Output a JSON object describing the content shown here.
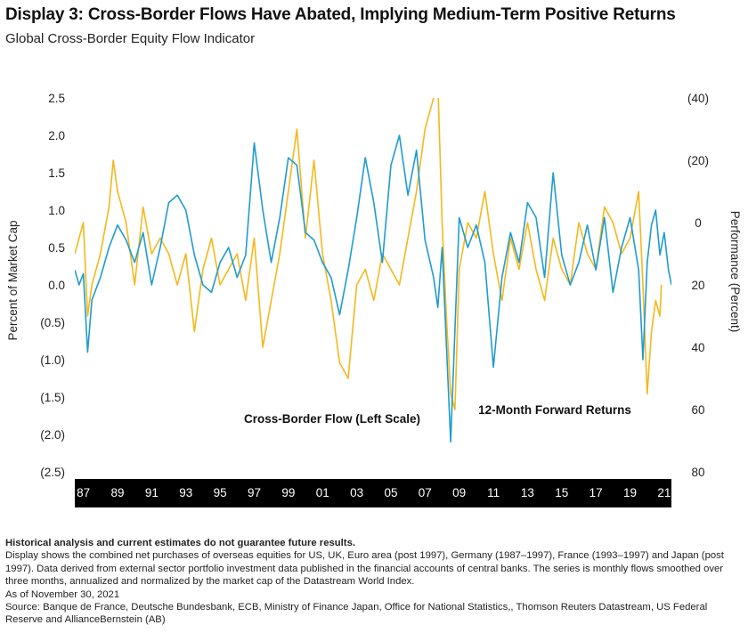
{
  "header": {
    "title": "Display 3: Cross-Border Flows Have Abated, Implying Medium-Term Positive Returns",
    "subtitle": "Global Cross-Border Equity Flow Indicator"
  },
  "chart_data": {
    "type": "line",
    "y_left_label": "Percent of Market Cap",
    "y_right_label": "Performance (Percent)",
    "y_left_ticks": [
      "2.5",
      "2.0",
      "1.5",
      "1.0",
      "0.5",
      "0.0",
      "(0.5)",
      "(1.0)",
      "(1.5)",
      "(2.0)",
      "(2.5)"
    ],
    "y_right_ticks": [
      "(40)",
      "(20)",
      "0",
      "20",
      "40",
      "60",
      "80"
    ],
    "y_left_lim": [
      -2.5,
      2.5
    ],
    "y_right_lim": [
      80,
      -40
    ],
    "y_right_inverted": true,
    "x_ticks": [
      "87",
      "89",
      "91",
      "93",
      "95",
      "97",
      "99",
      "01",
      "03",
      "05",
      "07",
      "09",
      "11",
      "13",
      "15",
      "17",
      "19",
      "21"
    ],
    "x_lim": [
      1987,
      2021.92
    ],
    "grid": false,
    "series": [
      {
        "name": "Cross-Border Flow (Left Scale)",
        "axis": "left",
        "color": "#1f9bd1",
        "x": [
          1987.0,
          1987.25,
          1987.5,
          1987.75,
          1988.0,
          1988.5,
          1989.0,
          1989.5,
          1990.0,
          1990.5,
          1991.0,
          1991.5,
          1992.0,
          1992.5,
          1993.0,
          1993.5,
          1994.0,
          1994.5,
          1995.0,
          1995.5,
          1996.0,
          1996.5,
          1997.0,
          1997.5,
          1998.0,
          1998.5,
          1999.0,
          1999.5,
          2000.0,
          2000.5,
          2001.0,
          2001.5,
          2002.0,
          2002.5,
          2003.0,
          2003.5,
          2004.0,
          2004.5,
          2005.0,
          2005.5,
          2006.0,
          2006.5,
          2007.0,
          2007.5,
          2008.0,
          2008.25,
          2008.5,
          2008.75,
          2009.0,
          2009.5,
          2010.0,
          2010.5,
          2011.0,
          2011.5,
          2012.0,
          2012.5,
          2013.0,
          2013.5,
          2014.0,
          2014.5,
          2015.0,
          2015.5,
          2016.0,
          2016.5,
          2017.0,
          2017.5,
          2018.0,
          2018.5,
          2019.0,
          2019.5,
          2020.0,
          2020.25,
          2020.5,
          2020.75,
          2021.0,
          2021.25,
          2021.5,
          2021.75,
          2021.92
        ],
        "y": [
          0.2,
          0.0,
          0.15,
          -0.9,
          -0.2,
          0.1,
          0.5,
          0.8,
          0.6,
          0.3,
          0.7,
          0.0,
          0.5,
          1.1,
          1.2,
          1.0,
          0.4,
          0.0,
          -0.1,
          0.3,
          0.5,
          0.1,
          0.4,
          1.9,
          1.0,
          0.3,
          0.9,
          1.7,
          1.6,
          0.7,
          0.6,
          0.3,
          0.1,
          -0.4,
          0.2,
          0.9,
          1.7,
          1.1,
          0.3,
          1.6,
          2.0,
          1.2,
          1.8,
          0.6,
          0.1,
          -0.3,
          0.5,
          -0.8,
          -2.1,
          0.9,
          0.5,
          0.8,
          0.3,
          -1.1,
          0.1,
          0.7,
          0.3,
          1.1,
          0.9,
          0.1,
          1.5,
          0.4,
          0.0,
          0.3,
          0.8,
          0.2,
          0.9,
          -0.1,
          0.5,
          0.9,
          0.2,
          -1.0,
          0.3,
          0.8,
          1.0,
          0.4,
          0.7,
          0.2,
          0.0
        ]
      },
      {
        "name": "12-Month Forward Returns",
        "axis": "right",
        "color": "#f5b81c",
        "x": [
          1987.0,
          1987.25,
          1987.5,
          1987.75,
          1988.0,
          1988.5,
          1989.0,
          1989.25,
          1989.5,
          1990.0,
          1990.5,
          1991.0,
          1991.5,
          1992.0,
          1992.5,
          1993.0,
          1993.5,
          1994.0,
          1994.5,
          1995.0,
          1995.5,
          1996.0,
          1996.5,
          1997.0,
          1997.5,
          1998.0,
          1998.5,
          1999.0,
          1999.5,
          2000.0,
          2000.5,
          2001.0,
          2001.5,
          2002.0,
          2002.5,
          2003.0,
          2003.5,
          2004.0,
          2004.5,
          2005.0,
          2005.5,
          2006.0,
          2006.5,
          2007.0,
          2007.5,
          2008.0,
          2008.25,
          2008.5,
          2008.75,
          2009.0,
          2009.25,
          2009.5,
          2010.0,
          2010.5,
          2011.0,
          2011.5,
          2012.0,
          2012.5,
          2013.0,
          2013.5,
          2014.0,
          2014.5,
          2015.0,
          2015.5,
          2016.0,
          2016.5,
          2017.0,
          2017.5,
          2018.0,
          2018.5,
          2019.0,
          2019.5,
          2020.0,
          2020.25,
          2020.5,
          2020.75,
          2021.0,
          2021.25,
          2021.33
        ],
        "y": [
          10,
          5,
          0,
          30,
          20,
          10,
          -5,
          -20,
          -10,
          0,
          20,
          -5,
          10,
          5,
          10,
          20,
          10,
          35,
          15,
          5,
          20,
          15,
          10,
          25,
          5,
          40,
          25,
          10,
          -10,
          -30,
          5,
          -20,
          10,
          25,
          45,
          50,
          20,
          15,
          25,
          10,
          15,
          20,
          5,
          -10,
          -30,
          -40,
          -45,
          0,
          30,
          55,
          60,
          15,
          0,
          5,
          -10,
          10,
          25,
          5,
          15,
          0,
          15,
          25,
          5,
          15,
          20,
          0,
          10,
          15,
          -5,
          0,
          10,
          5,
          -10,
          20,
          55,
          35,
          25,
          30,
          20
        ]
      }
    ],
    "annotations": [
      {
        "text": "Cross-Border Flow (Left Scale)",
        "x": 2002.2,
        "y": -1.7
      },
      {
        "text": "12-Month Forward Returns",
        "x": 2015.8,
        "y": -1.6
      }
    ]
  },
  "footer": {
    "disclaimer": "Historical analysis and current estimates do not guarantee future results.",
    "note": "Display shows the combined net purchases of overseas equities for US, UK, Euro area (post 1997), Germany (1987–1997), France (1993–1997) and Japan (post 1997). Data derived from external sector portfolio investment data published in the financial accounts of central banks. The series is monthly flows smoothed over three months, annualized and normalized by the market cap of the Datastream World Index.",
    "as_of": "As of November 30, 2021",
    "source": "Source: Banque de France, Deutsche Bundesbank, ECB, Ministry of Finance Japan, Office for National Statistics,, Thomson Reuters Datastream, US Federal Reserve and AllianceBernstein (AB)"
  }
}
